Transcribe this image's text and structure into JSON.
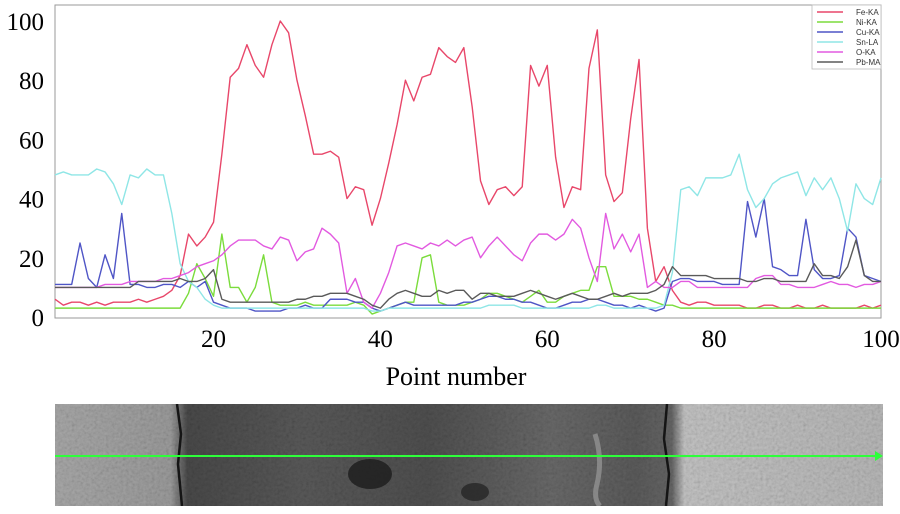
{
  "chart_data": {
    "type": "line",
    "xlabel": "Point number",
    "ylabel": "",
    "title": "",
    "xlim": [
      1,
      100
    ],
    "ylim": [
      0,
      100
    ],
    "x_ticks": [
      "20",
      "40",
      "60",
      "80",
      "100"
    ],
    "y_ticks": [
      "0",
      "20",
      "40",
      "60",
      "80",
      "100"
    ],
    "grid": false,
    "legend_position": "top-right",
    "series": [
      {
        "name": "Fe-KA",
        "color": "#e8476a",
        "values": [
          6,
          4,
          5,
          5,
          4,
          5,
          4,
          5,
          5,
          5,
          6,
          5,
          6,
          7,
          9,
          14,
          28,
          24,
          27,
          32,
          55,
          81,
          84,
          92,
          85,
          81,
          92,
          100,
          96,
          80,
          68,
          55,
          55,
          56,
          54,
          40,
          44,
          43,
          31,
          40,
          52,
          65,
          80,
          73,
          81,
          82,
          91,
          88,
          86,
          91,
          71,
          46,
          38,
          43,
          44,
          41,
          44,
          85,
          78,
          85,
          54,
          37,
          44,
          43,
          84,
          97,
          48,
          39,
          42,
          67,
          87,
          30,
          12,
          17,
          9,
          5,
          4,
          5,
          5,
          4,
          4,
          4,
          4,
          3,
          3,
          4,
          4,
          3,
          3,
          4,
          3,
          3,
          4,
          3,
          3,
          3,
          3,
          4,
          3,
          4
        ]
      },
      {
        "name": "Ni-KA",
        "color": "#7bdc3c",
        "values": [
          3,
          3,
          3,
          3,
          3,
          3,
          3,
          3,
          3,
          3,
          3,
          3,
          3,
          3,
          3,
          3,
          8,
          18,
          13,
          7,
          28,
          10,
          10,
          5,
          10,
          21,
          5,
          4,
          4,
          4,
          5,
          4,
          4,
          4,
          4,
          4,
          5,
          4,
          1,
          2,
          3,
          4,
          5,
          5,
          20,
          21,
          5,
          4,
          4,
          4,
          5,
          6,
          8,
          8,
          7,
          6,
          5,
          7,
          9,
          5,
          5,
          7,
          8,
          9,
          9,
          17,
          17,
          7,
          7,
          7,
          6,
          6,
          5,
          4,
          4,
          3,
          3,
          3,
          3,
          3,
          3,
          3,
          3,
          3,
          3,
          3,
          3,
          3,
          3,
          3,
          3,
          3,
          3,
          3,
          3,
          3,
          3,
          3,
          3,
          3
        ]
      },
      {
        "name": "Cu-KA",
        "color": "#4f55c6",
        "values": [
          11,
          11,
          11,
          25,
          13,
          10,
          21,
          13,
          35,
          11,
          11,
          10,
          10,
          11,
          11,
          10,
          12,
          10,
          12,
          5,
          4,
          3,
          3,
          3,
          2,
          2,
          2,
          2,
          3,
          3,
          4,
          3,
          3,
          6,
          6,
          6,
          5,
          5,
          3,
          2,
          3,
          4,
          5,
          4,
          4,
          4,
          4,
          4,
          4,
          5,
          5,
          6,
          7,
          7,
          6,
          6,
          5,
          5,
          4,
          3,
          3,
          4,
          5,
          5,
          6,
          6,
          5,
          4,
          4,
          3,
          4,
          3,
          2,
          3,
          12,
          13,
          13,
          12,
          12,
          12,
          11,
          11,
          11,
          39,
          27,
          40,
          17,
          16,
          14,
          14,
          33,
          16,
          13,
          13,
          14,
          30,
          27,
          14,
          13,
          12
        ]
      },
      {
        "name": "Sn-LA",
        "color": "#8fe6e6",
        "values": [
          48,
          49,
          48,
          48,
          48,
          50,
          49,
          45,
          38,
          48,
          47,
          50,
          48,
          48,
          35,
          18,
          12,
          10,
          6,
          4,
          3,
          3,
          3,
          3,
          3,
          3,
          3,
          3,
          3,
          3,
          3,
          3,
          3,
          3,
          3,
          3,
          3,
          3,
          2,
          2,
          3,
          3,
          3,
          3,
          3,
          3,
          3,
          3,
          3,
          3,
          3,
          3,
          4,
          4,
          4,
          4,
          3,
          3,
          3,
          3,
          3,
          3,
          3,
          3,
          3,
          4,
          4,
          3,
          3,
          3,
          3,
          3,
          3,
          4,
          15,
          43,
          44,
          41,
          47,
          47,
          47,
          48,
          55,
          43,
          37,
          40,
          45,
          47,
          48,
          49,
          41,
          47,
          43,
          47,
          40,
          29,
          45,
          40,
          38,
          47
        ]
      },
      {
        "name": "O-KA",
        "color": "#e25ae0",
        "values": [
          10,
          10,
          10,
          10,
          10,
          10,
          11,
          11,
          11,
          12,
          12,
          12,
          12,
          13,
          13,
          14,
          15,
          17,
          18,
          19,
          21,
          24,
          26,
          26,
          26,
          24,
          23,
          27,
          26,
          19,
          22,
          23,
          30,
          28,
          25,
          8,
          13,
          5,
          3,
          8,
          15,
          24,
          25,
          24,
          23,
          25,
          24,
          26,
          24,
          26,
          27,
          20,
          24,
          27,
          24,
          21,
          19,
          25,
          28,
          28,
          26,
          28,
          33,
          30,
          20,
          12,
          35,
          23,
          28,
          22,
          28,
          10,
          12,
          10,
          10,
          12,
          12,
          10,
          10,
          10,
          10,
          10,
          10,
          10,
          13,
          14,
          14,
          11,
          11,
          10,
          10,
          10,
          11,
          12,
          11,
          11,
          10,
          11,
          11,
          12
        ]
      },
      {
        "name": "Pb-MA",
        "color": "#5a5a5a",
        "values": [
          10,
          10,
          10,
          10,
          10,
          10,
          10,
          10,
          10,
          10,
          12,
          12,
          12,
          12,
          12,
          13,
          12,
          12,
          13,
          16,
          6,
          5,
          5,
          5,
          5,
          5,
          5,
          5,
          5,
          6,
          6,
          7,
          7,
          8,
          8,
          8,
          7,
          6,
          4,
          3,
          6,
          8,
          9,
          8,
          7,
          7,
          9,
          8,
          9,
          9,
          6,
          8,
          8,
          7,
          7,
          7,
          8,
          9,
          8,
          7,
          6,
          7,
          8,
          7,
          6,
          6,
          7,
          8,
          7,
          8,
          8,
          8,
          9,
          11,
          17,
          14,
          14,
          14,
          14,
          13,
          13,
          13,
          13,
          12,
          12,
          13,
          13,
          12,
          12,
          12,
          12,
          18,
          14,
          14,
          13,
          17,
          26,
          14,
          12,
          12
        ]
      }
    ]
  }
}
